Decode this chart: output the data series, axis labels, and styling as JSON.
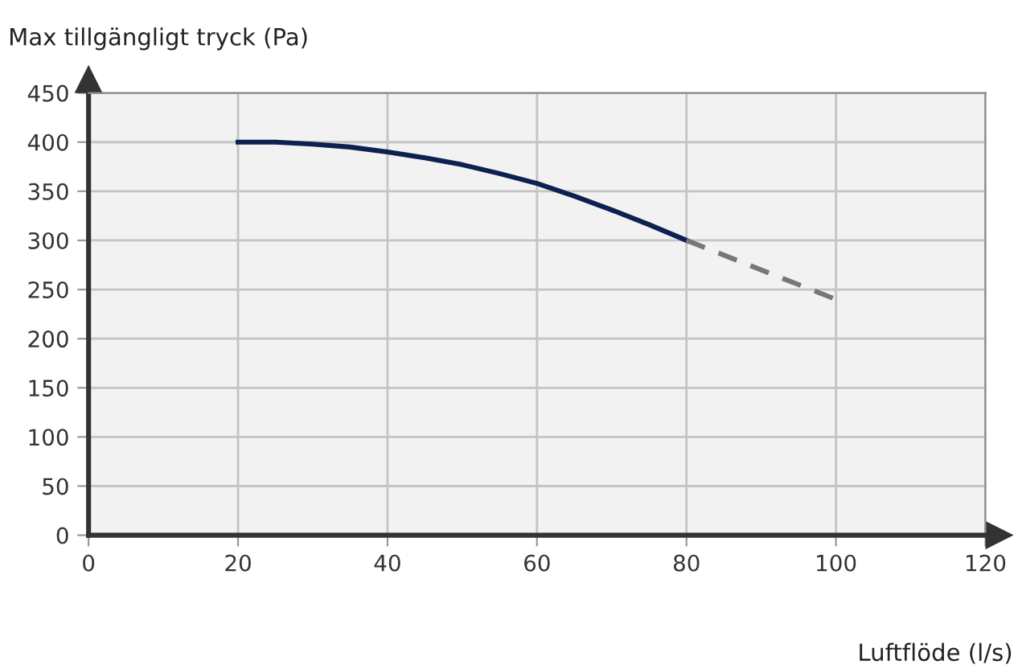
{
  "chart_data": {
    "type": "line",
    "xlabel": "Luftflöde (l/s)",
    "ylabel": "Max tillgängligt tryck (Pa)",
    "series": [
      {
        "color": "#0d2150",
        "line_style": "solid",
        "x": [
          20,
          25,
          30,
          35,
          40,
          45,
          50,
          55,
          60,
          65,
          70,
          75,
          80
        ],
        "values": [
          400,
          400,
          398,
          395,
          390,
          384,
          377,
          368,
          358,
          345,
          331,
          316,
          300
        ]
      },
      {
        "color": "#777777",
        "line_style": "dashed",
        "x": [
          80,
          100
        ],
        "values": [
          300,
          240
        ]
      }
    ],
    "xlim": [
      0,
      120
    ],
    "ylim": [
      0,
      450
    ],
    "xticks": [
      0,
      20,
      40,
      60,
      80,
      100,
      120
    ],
    "yticks": [
      0,
      50,
      100,
      150,
      200,
      250,
      300,
      350,
      400,
      450
    ],
    "grid": true,
    "legend": false,
    "marker": "none"
  }
}
